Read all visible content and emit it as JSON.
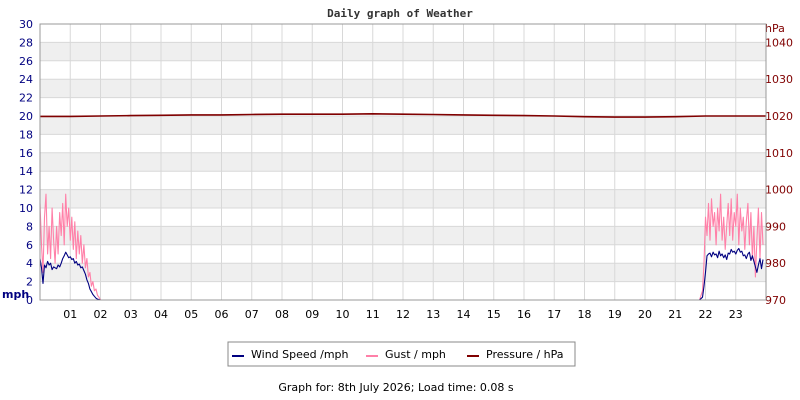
{
  "chart_data": {
    "type": "line",
    "title": "Daily graph of Weather",
    "x_ticks": [
      "01",
      "02",
      "03",
      "04",
      "05",
      "06",
      "07",
      "08",
      "09",
      "10",
      "11",
      "12",
      "13",
      "14",
      "15",
      "16",
      "17",
      "18",
      "19",
      "20",
      "21",
      "22",
      "23"
    ],
    "xlim": [
      0,
      24
    ],
    "y_left": {
      "unit": "mph",
      "range": [
        0,
        30
      ],
      "ticks": [
        "0",
        "2",
        "4",
        "6",
        "8",
        "10",
        "12",
        "14",
        "16",
        "18",
        "20",
        "22",
        "24",
        "26",
        "28",
        "30"
      ]
    },
    "y_right": {
      "unit": "hPa",
      "range": [
        970,
        1045
      ],
      "ticks": [
        "970",
        "980",
        "990",
        "1000",
        "1010",
        "1020",
        "1030",
        "1040"
      ]
    },
    "grid": true,
    "legend_position": "bottom",
    "series": [
      {
        "name": "Wind Speed /mph",
        "axis": "left",
        "color": "#000080",
        "x": [
          0.0,
          0.05,
          0.1,
          0.15,
          0.2,
          0.25,
          0.3,
          0.35,
          0.4,
          0.45,
          0.5,
          0.55,
          0.6,
          0.65,
          0.7,
          0.75,
          0.8,
          0.85,
          0.9,
          0.95,
          1.0,
          1.05,
          1.1,
          1.15,
          1.2,
          1.25,
          1.3,
          1.35,
          1.4,
          1.45,
          1.5,
          1.55,
          1.6,
          1.65,
          1.7,
          1.75,
          1.8,
          1.85,
          1.9,
          1.95,
          2.0,
          2.05,
          2.1,
          2.2,
          3.0,
          6.0,
          10.0,
          15.0,
          20.0,
          21.8,
          21.9,
          21.95,
          22.0,
          22.05,
          22.1,
          22.15,
          22.2,
          22.25,
          22.3,
          22.35,
          22.4,
          22.45,
          22.5,
          22.55,
          22.6,
          22.65,
          22.7,
          22.75,
          22.8,
          22.85,
          22.9,
          22.95,
          23.0,
          23.05,
          23.1,
          23.15,
          23.2,
          23.25,
          23.3,
          23.35,
          23.4,
          23.45,
          23.5,
          23.55,
          23.6,
          23.65,
          23.7,
          23.75,
          23.8,
          23.85,
          23.9
        ],
        "values": [
          4.5,
          3.5,
          1.8,
          3.8,
          3.5,
          4.2,
          3.8,
          4.0,
          3.3,
          3.6,
          3.5,
          3.4,
          3.8,
          3.6,
          4.0,
          4.5,
          4.8,
          5.2,
          4.9,
          4.6,
          4.7,
          4.4,
          4.5,
          4.0,
          4.2,
          3.8,
          3.9,
          3.5,
          3.6,
          3.2,
          2.8,
          2.2,
          1.8,
          1.2,
          0.9,
          0.6,
          0.4,
          0.2,
          0.1,
          0.05,
          0.0,
          0.0,
          0.0,
          0.0,
          0.0,
          0.0,
          0.0,
          0.0,
          0.0,
          0.0,
          0.3,
          1.5,
          3.0,
          4.8,
          5.0,
          5.1,
          4.7,
          5.2,
          4.9,
          5.0,
          4.6,
          5.3,
          4.8,
          5.0,
          4.6,
          4.9,
          4.4,
          5.1,
          5.0,
          5.5,
          5.2,
          5.3,
          5.0,
          5.4,
          5.6,
          5.2,
          5.3,
          4.8,
          4.9,
          4.5,
          5.0,
          5.2,
          4.3,
          4.8,
          4.2,
          3.6,
          3.0,
          3.8,
          4.5,
          3.4,
          4.4
        ]
      },
      {
        "name": "Gust / mph",
        "axis": "left",
        "color": "#ff80a8",
        "x": [
          0.0,
          0.05,
          0.1,
          0.15,
          0.2,
          0.25,
          0.3,
          0.35,
          0.4,
          0.45,
          0.5,
          0.55,
          0.6,
          0.65,
          0.7,
          0.75,
          0.8,
          0.85,
          0.9,
          0.95,
          1.0,
          1.05,
          1.1,
          1.15,
          1.2,
          1.25,
          1.3,
          1.35,
          1.4,
          1.45,
          1.5,
          1.55,
          1.6,
          1.65,
          1.7,
          1.75,
          1.8,
          1.85,
          1.9,
          1.95,
          2.0,
          2.05,
          2.1,
          2.2,
          3.0,
          6.0,
          10.0,
          15.0,
          20.0,
          21.8,
          21.9,
          21.95,
          22.0,
          22.05,
          22.1,
          22.15,
          22.2,
          22.25,
          22.3,
          22.35,
          22.4,
          22.45,
          22.5,
          22.55,
          22.6,
          22.65,
          22.7,
          22.75,
          22.8,
          22.85,
          22.9,
          22.95,
          23.0,
          23.05,
          23.1,
          23.15,
          23.2,
          23.25,
          23.3,
          23.35,
          23.4,
          23.45,
          23.5,
          23.55,
          23.6,
          23.65,
          23.7,
          23.75,
          23.8,
          23.85,
          23.9
        ],
        "values": [
          10.5,
          6.0,
          3.0,
          9.0,
          11.5,
          5.0,
          8.0,
          4.5,
          10.0,
          6.5,
          4.0,
          8.0,
          5.0,
          9.5,
          7.0,
          10.5,
          6.0,
          11.5,
          8.0,
          10.0,
          6.5,
          9.0,
          5.5,
          8.5,
          4.5,
          7.5,
          5.0,
          7.0,
          4.0,
          6.0,
          3.5,
          4.5,
          2.5,
          3.0,
          1.5,
          2.0,
          1.0,
          1.2,
          0.5,
          0.3,
          0.0,
          0.0,
          0.0,
          0.0,
          0.0,
          0.0,
          0.0,
          0.0,
          0.0,
          0.0,
          1.0,
          4.0,
          9.0,
          7.0,
          10.5,
          6.5,
          11.0,
          8.0,
          9.5,
          6.0,
          10.0,
          7.5,
          11.5,
          6.5,
          9.0,
          5.5,
          8.0,
          10.5,
          7.0,
          11.0,
          6.5,
          9.5,
          8.0,
          11.5,
          6.0,
          10.0,
          7.5,
          9.0,
          5.5,
          8.5,
          10.5,
          6.0,
          9.5,
          4.5,
          8.0,
          2.5,
          6.5,
          10.0,
          4.5,
          9.5,
          6.0
        ]
      },
      {
        "name": "Pressure / hPa",
        "axis": "right",
        "color": "#800000",
        "x": [
          0,
          1,
          2,
          3,
          4,
          5,
          6,
          7,
          8,
          9,
          10,
          11,
          12,
          13,
          14,
          15,
          16,
          17,
          18,
          19,
          20,
          21,
          22,
          23,
          24
        ],
        "values": [
          1019.9,
          1019.9,
          1020.0,
          1020.1,
          1020.2,
          1020.3,
          1020.3,
          1020.4,
          1020.5,
          1020.5,
          1020.5,
          1020.6,
          1020.5,
          1020.4,
          1020.3,
          1020.2,
          1020.1,
          1020.0,
          1019.8,
          1019.7,
          1019.7,
          1019.8,
          1020.0,
          1020.0,
          1020.0
        ]
      }
    ]
  },
  "footer": "Graph for: 8th July 2026; Load time: 0.08 s"
}
